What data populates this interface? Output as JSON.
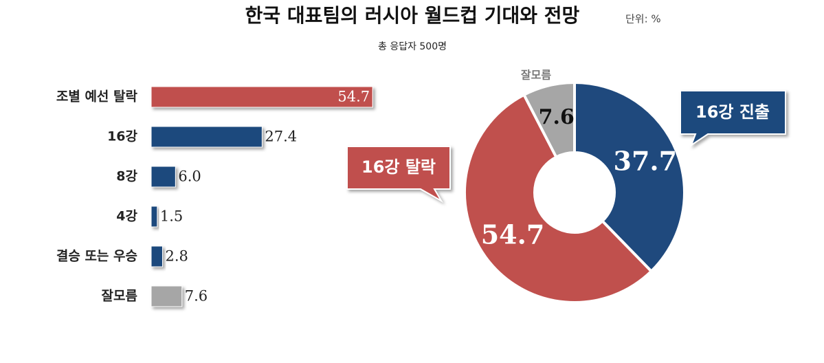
{
  "title": "한국 대표팀의 러시아 월드컵 기대와 전망",
  "unit": "단위: %",
  "subtitle": "총 응답자 500명",
  "chart_data": [
    {
      "type": "bar",
      "categories": [
        "조별 예선 탈락",
        "16강",
        "8강",
        "4강",
        "결승 또는 우승",
        "잘모름"
      ],
      "values": [
        54.7,
        27.4,
        6.0,
        1.5,
        2.8,
        7.6
      ],
      "value_labels": [
        "54.7",
        "27.4",
        "6.0",
        "1.5",
        "2.8",
        "7.6"
      ],
      "colors": [
        "#c0504d",
        "#1f497d",
        "#1f497d",
        "#1f497d",
        "#1f497d",
        "#a6a6a6"
      ]
    },
    {
      "type": "donut",
      "categories": [
        "16강 진출",
        "16강 탈락",
        "잘모름"
      ],
      "values": [
        37.7,
        54.7,
        7.6
      ],
      "colors": [
        "#1f497d",
        "#c0504d",
        "#a6a6a6"
      ]
    }
  ]
}
